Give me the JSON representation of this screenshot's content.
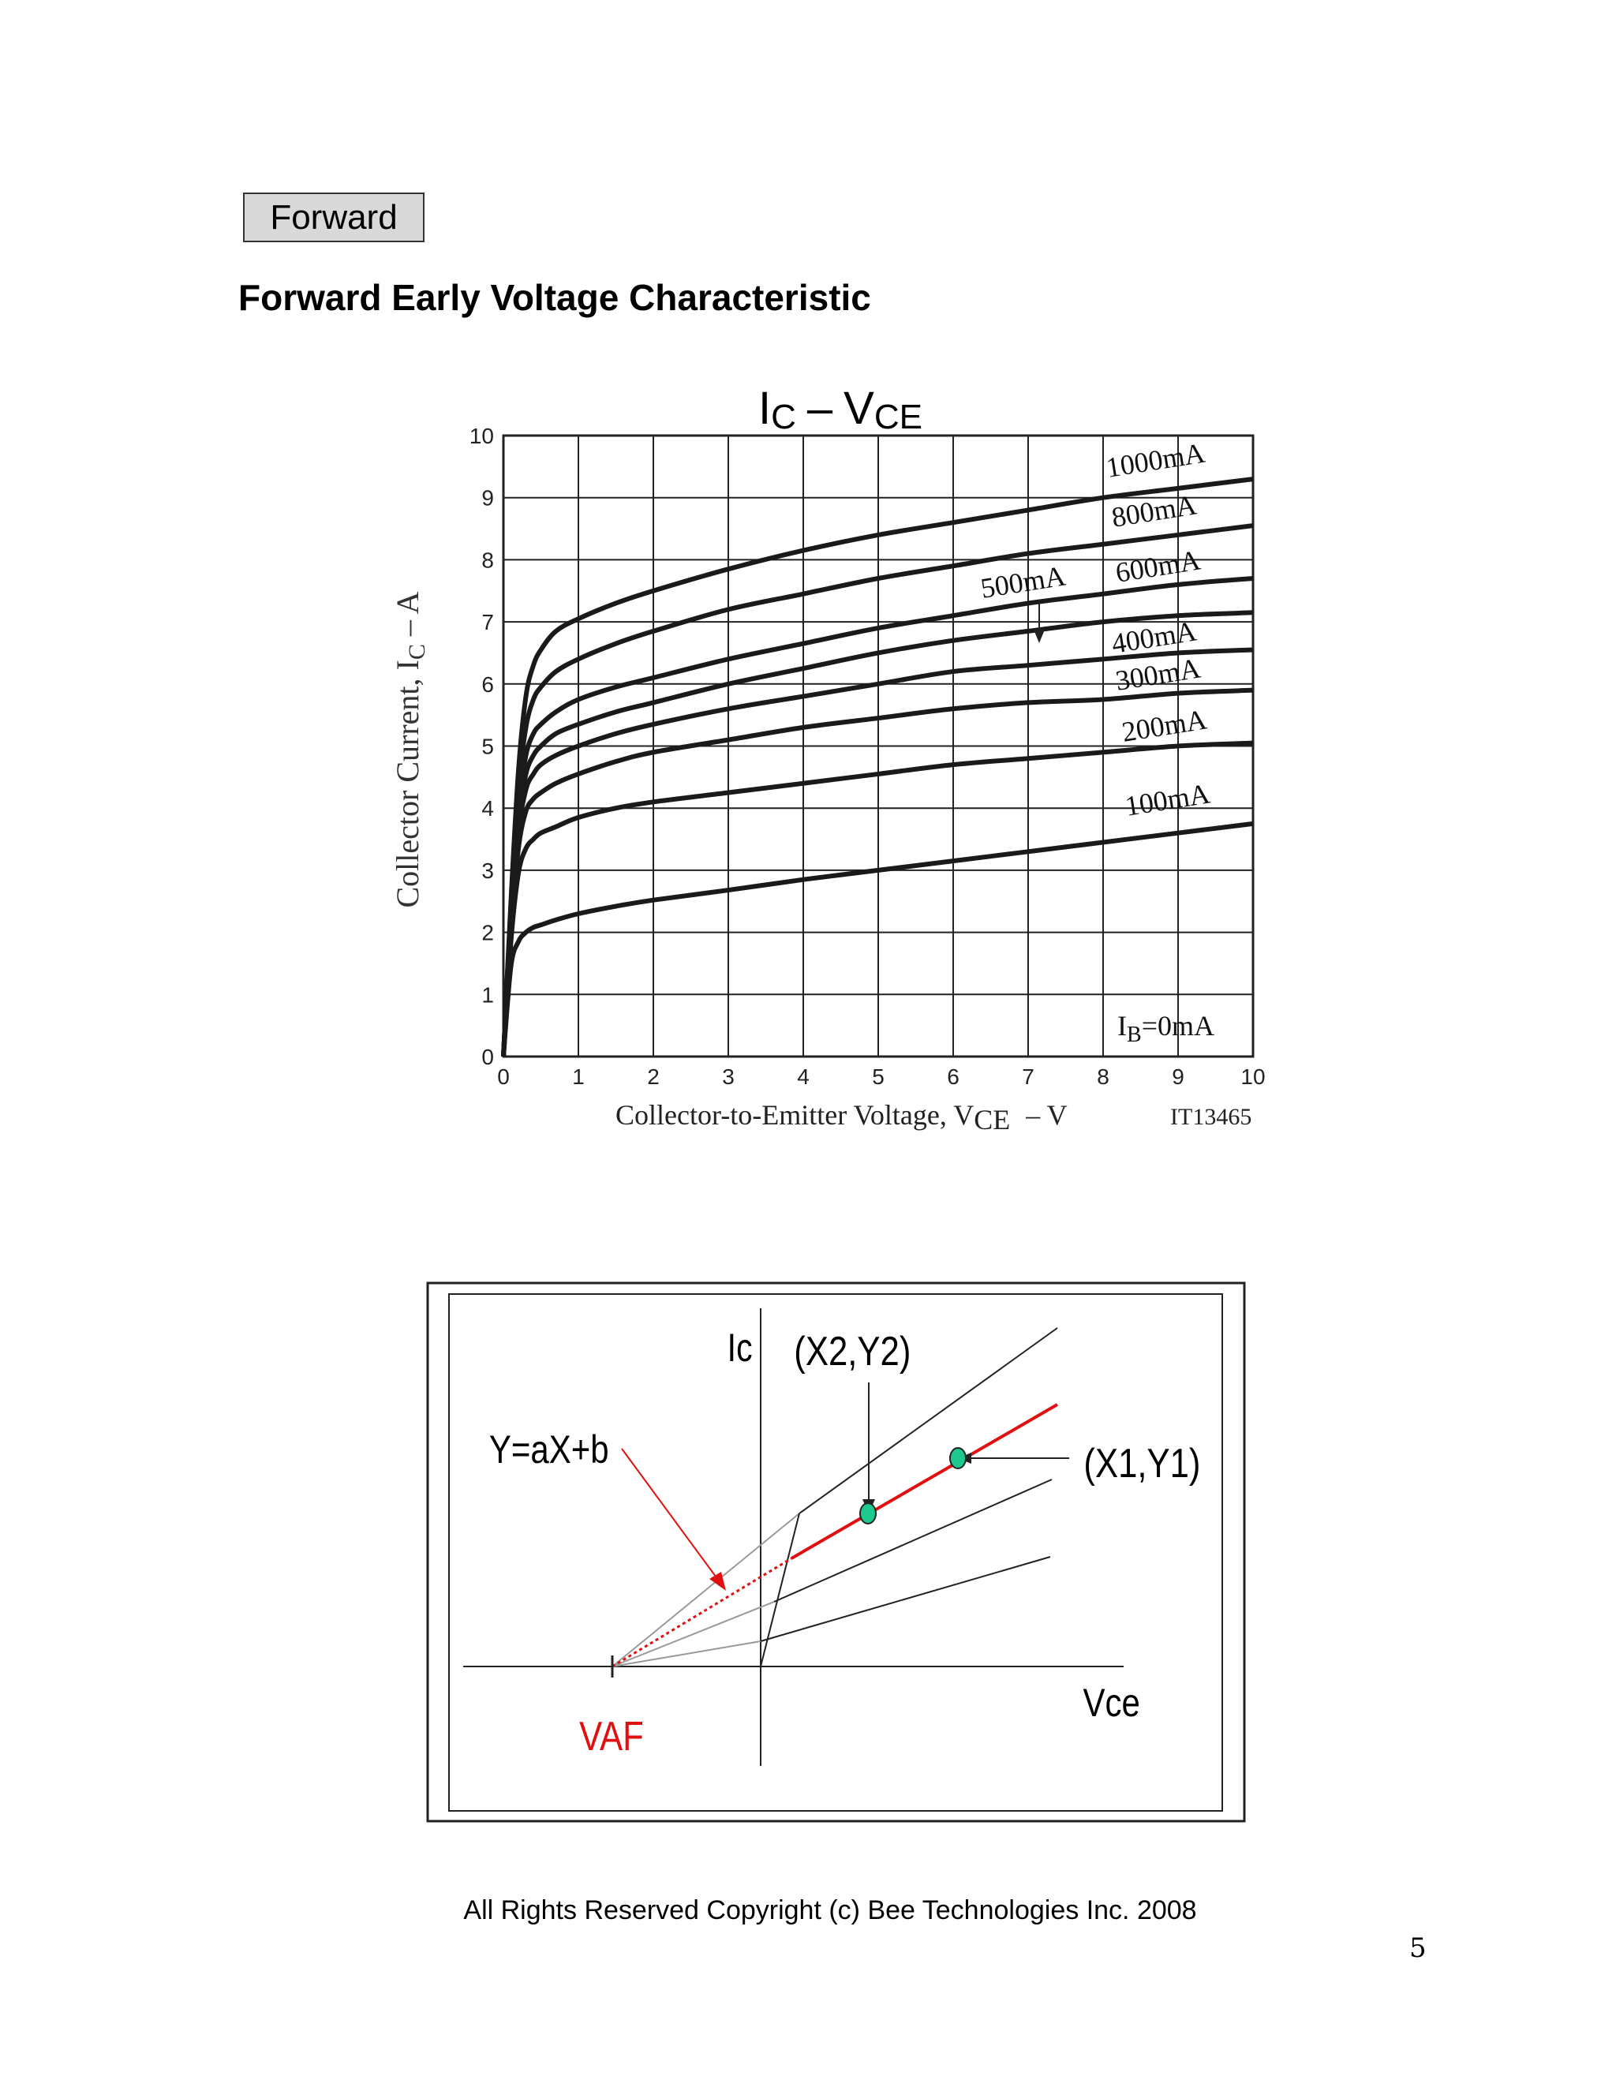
{
  "header": {
    "section_tag": "Forward",
    "title": "Forward Early Voltage Characteristic"
  },
  "chart_data": {
    "type": "line",
    "title_main": "I",
    "title_main_sub": "C",
    "title_sep": "–",
    "title_second": "V",
    "title_second_sub": "CE",
    "xlabel": "Collector-to-Emitter Voltage, V",
    "xlabel_sub": "CE",
    "xlabel_unit": "–  V",
    "ylabel": "Collector Current, I",
    "ylabel_sub": "C",
    "ylabel_unit": "–  A",
    "figure_id": "IT13465",
    "xlim": [
      0,
      10
    ],
    "ylim": [
      0,
      10
    ],
    "x_ticks": [
      "0",
      "1",
      "2",
      "3",
      "4",
      "5",
      "6",
      "7",
      "8",
      "9",
      "10"
    ],
    "y_ticks": [
      "0",
      "1",
      "2",
      "3",
      "4",
      "5",
      "6",
      "7",
      "8",
      "9",
      "10"
    ],
    "grid": true,
    "x": [
      0,
      0.1,
      0.2,
      0.3,
      0.4,
      0.5,
      0.7,
      1,
      1.5,
      2,
      3,
      4,
      5,
      6,
      7,
      8,
      9,
      10
    ],
    "series": [
      {
        "name": "1000mA",
        "values": [
          0,
          2.5,
          4.6,
          5.8,
          6.3,
          6.55,
          6.85,
          7.05,
          7.3,
          7.5,
          7.85,
          8.15,
          8.4,
          8.6,
          8.8,
          9.0,
          9.15,
          9.3
        ]
      },
      {
        "name": "800mA",
        "values": [
          0,
          2.4,
          4.3,
          5.3,
          5.75,
          5.95,
          6.2,
          6.4,
          6.65,
          6.85,
          7.2,
          7.45,
          7.7,
          7.9,
          8.1,
          8.25,
          8.4,
          8.55
        ]
      },
      {
        "name": "600mA",
        "values": [
          0,
          2.3,
          4.0,
          4.85,
          5.2,
          5.35,
          5.55,
          5.75,
          5.95,
          6.1,
          6.4,
          6.65,
          6.9,
          7.1,
          7.3,
          7.45,
          7.6,
          7.7
        ]
      },
      {
        "name": "500mA",
        "values": [
          0,
          2.2,
          3.8,
          4.55,
          4.85,
          5.0,
          5.2,
          5.35,
          5.55,
          5.7,
          6.0,
          6.25,
          6.5,
          6.7,
          6.85,
          7.0,
          7.1,
          7.15
        ]
      },
      {
        "name": "400mA",
        "values": [
          0,
          2.1,
          3.6,
          4.3,
          4.55,
          4.7,
          4.85,
          5.0,
          5.2,
          5.35,
          5.6,
          5.8,
          6.0,
          6.2,
          6.3,
          6.4,
          6.5,
          6.55
        ]
      },
      {
        "name": "300mA",
        "values": [
          0,
          2.0,
          3.35,
          3.95,
          4.15,
          4.25,
          4.4,
          4.55,
          4.75,
          4.9,
          5.1,
          5.3,
          5.45,
          5.6,
          5.7,
          5.75,
          5.85,
          5.9
        ]
      },
      {
        "name": "200mA",
        "values": [
          0,
          1.85,
          2.95,
          3.35,
          3.5,
          3.6,
          3.7,
          3.85,
          4.0,
          4.1,
          4.25,
          4.4,
          4.55,
          4.7,
          4.8,
          4.9,
          5.0,
          5.05
        ]
      },
      {
        "name": "100mA",
        "values": [
          0,
          1.45,
          1.85,
          2.0,
          2.08,
          2.12,
          2.2,
          2.3,
          2.42,
          2.52,
          2.68,
          2.85,
          3.0,
          3.15,
          3.3,
          3.45,
          3.6,
          3.75
        ]
      },
      {
        "name": "IB=0mA",
        "values": [
          0,
          0,
          0,
          0,
          0,
          0,
          0,
          0,
          0,
          0,
          0,
          0,
          0,
          0,
          0,
          0,
          0,
          0
        ]
      }
    ],
    "labels": {
      "l1000": "1000mA",
      "l800": "800mA",
      "l600": "600mA",
      "l500": "500mA",
      "l400": "400mA",
      "l300": "300mA",
      "l200": "200mA",
      "l100": "100mA",
      "lib_main": "I",
      "lib_sub": "B",
      "lib_rest": "=0mA"
    }
  },
  "diagram": {
    "axis_y_label": "Ic",
    "axis_x_label": "Vce",
    "point2": "(X2,Y2)",
    "point1": "(X1,Y1)",
    "equation": "Y=aX+b",
    "vaf": "VAF",
    "colors": {
      "red": "#e01010",
      "green": "#1ec98f"
    }
  },
  "footer": {
    "copyright": "All Rights Reserved Copyright (c) Bee Technologies Inc. 2008",
    "page_number": "5"
  }
}
